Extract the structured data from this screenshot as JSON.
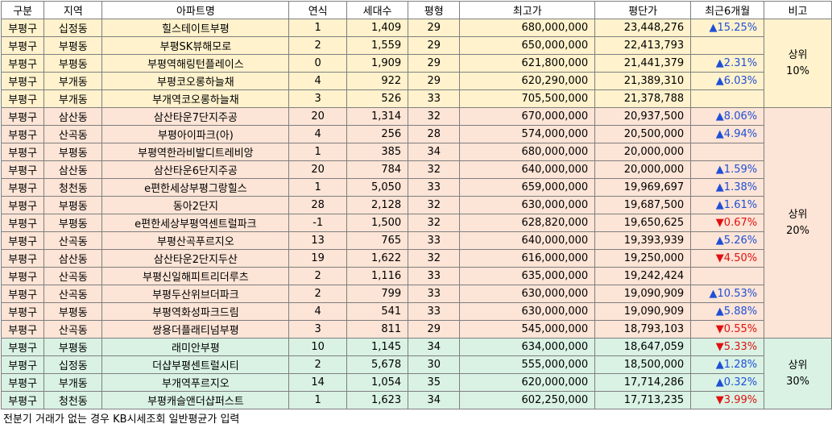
{
  "headers": [
    "구분",
    "지역",
    "아파트명",
    "연식",
    "세대수",
    "평형",
    "최고가",
    "평단가",
    "최근6개월",
    "비고"
  ],
  "groups": [
    {
      "label_line1": "상위",
      "label_line2": "10%",
      "rows": [
        {
          "gu": "부평구",
          "dong": "십정동",
          "name": "힐스테이트부평",
          "age": "1",
          "units": "1,409",
          "size": "29",
          "max": "680,000,000",
          "per": "23,448,276",
          "chg_dir": "up",
          "chg": "15.25%"
        },
        {
          "gu": "부평구",
          "dong": "부평동",
          "name": "부평SK뷰해모로",
          "age": "2",
          "units": "1,559",
          "size": "29",
          "max": "650,000,000",
          "per": "22,413,793",
          "chg_dir": "",
          "chg": ""
        },
        {
          "gu": "부평구",
          "dong": "부평동",
          "name": "부평역해링턴플레이스",
          "age": "0",
          "units": "1,909",
          "size": "29",
          "max": "621,800,000",
          "per": "21,441,379",
          "chg_dir": "up",
          "chg": "2.31%"
        },
        {
          "gu": "부평구",
          "dong": "부개동",
          "name": "부평코오롱하늘채",
          "age": "4",
          "units": "922",
          "size": "29",
          "max": "620,290,000",
          "per": "21,389,310",
          "chg_dir": "up",
          "chg": "6.03%"
        },
        {
          "gu": "부평구",
          "dong": "부개동",
          "name": "부개역코오롱하늘채",
          "age": "3",
          "units": "526",
          "size": "33",
          "max": "705,500,000",
          "per": "21,378,788",
          "chg_dir": "",
          "chg": ""
        }
      ]
    },
    {
      "label_line1": "상위",
      "label_line2": "20%",
      "rows": [
        {
          "gu": "부평구",
          "dong": "삼산동",
          "name": "삼산타운7단지주공",
          "age": "20",
          "units": "1,314",
          "size": "32",
          "max": "670,000,000",
          "per": "20,937,500",
          "chg_dir": "up",
          "chg": "8.06%"
        },
        {
          "gu": "부평구",
          "dong": "산곡동",
          "name": "부평아이파크(아)",
          "age": "4",
          "units": "256",
          "size": "28",
          "max": "574,000,000",
          "per": "20,500,000",
          "chg_dir": "up",
          "chg": "4.94%"
        },
        {
          "gu": "부평구",
          "dong": "부평동",
          "name": "부평역한라비발디트레비앙",
          "age": "1",
          "units": "385",
          "size": "34",
          "max": "680,000,000",
          "per": "20,000,000",
          "chg_dir": "",
          "chg": ""
        },
        {
          "gu": "부평구",
          "dong": "삼산동",
          "name": "삼산타운6단지주공",
          "age": "20",
          "units": "784",
          "size": "32",
          "max": "640,000,000",
          "per": "20,000,000",
          "chg_dir": "up",
          "chg": "1.59%"
        },
        {
          "gu": "부평구",
          "dong": "청천동",
          "name": "e편한세상부평그랑힐스",
          "age": "1",
          "units": "5,050",
          "size": "33",
          "max": "659,000,000",
          "per": "19,969,697",
          "chg_dir": "up",
          "chg": "1.38%"
        },
        {
          "gu": "부평구",
          "dong": "부평동",
          "name": "동아2단지",
          "age": "28",
          "units": "2,128",
          "size": "32",
          "max": "630,000,000",
          "per": "19,687,500",
          "chg_dir": "up",
          "chg": "1.61%"
        },
        {
          "gu": "부평구",
          "dong": "부평동",
          "name": "e편한세상부평역센트럴파크",
          "age": "-1",
          "units": "1,500",
          "size": "32",
          "max": "628,820,000",
          "per": "19,650,625",
          "chg_dir": "down",
          "chg": "0.67%"
        },
        {
          "gu": "부평구",
          "dong": "산곡동",
          "name": "부평산곡푸르지오",
          "age": "13",
          "units": "765",
          "size": "33",
          "max": "640,000,000",
          "per": "19,393,939",
          "chg_dir": "up",
          "chg": "5.26%"
        },
        {
          "gu": "부평구",
          "dong": "삼산동",
          "name": "삼산타운2단지두산",
          "age": "19",
          "units": "1,622",
          "size": "32",
          "max": "616,000,000",
          "per": "19,250,000",
          "chg_dir": "down",
          "chg": "4.50%"
        },
        {
          "gu": "부평구",
          "dong": "산곡동",
          "name": "부평신일해피트리더루츠",
          "age": "2",
          "units": "1,116",
          "size": "33",
          "max": "635,000,000",
          "per": "19,242,424",
          "chg_dir": "",
          "chg": ""
        },
        {
          "gu": "부평구",
          "dong": "산곡동",
          "name": "부평두산위브더파크",
          "age": "2",
          "units": "799",
          "size": "33",
          "max": "630,000,000",
          "per": "19,090,909",
          "chg_dir": "up",
          "chg": "10.53%"
        },
        {
          "gu": "부평구",
          "dong": "부평동",
          "name": "부평역화성파크드림",
          "age": "4",
          "units": "541",
          "size": "33",
          "max": "630,000,000",
          "per": "19,090,909",
          "chg_dir": "up",
          "chg": "5.88%"
        },
        {
          "gu": "부평구",
          "dong": "산곡동",
          "name": "쌍용더플래티넘부평",
          "age": "3",
          "units": "811",
          "size": "29",
          "max": "545,000,000",
          "per": "18,793,103",
          "chg_dir": "down",
          "chg": "0.55%"
        }
      ]
    },
    {
      "label_line1": "상위",
      "label_line2": "30%",
      "rows": [
        {
          "gu": "부평구",
          "dong": "부평동",
          "name": "래미안부평",
          "age": "10",
          "units": "1,145",
          "size": "34",
          "max": "634,000,000",
          "per": "18,647,059",
          "chg_dir": "down",
          "chg": "5.33%"
        },
        {
          "gu": "부평구",
          "dong": "십정동",
          "name": "더샵부평센트럴시티",
          "age": "2",
          "units": "5,678",
          "size": "30",
          "max": "555,000,000",
          "per": "18,500,000",
          "chg_dir": "up",
          "chg": "1.28%"
        },
        {
          "gu": "부평구",
          "dong": "부개동",
          "name": "부개역푸르지오",
          "age": "14",
          "units": "1,054",
          "size": "35",
          "max": "620,000,000",
          "per": "17,714,286",
          "chg_dir": "up",
          "chg": "0.32%"
        },
        {
          "gu": "부평구",
          "dong": "청천동",
          "name": "부평캐슬앤더샵퍼스트",
          "age": "1",
          "units": "1,623",
          "size": "34",
          "max": "602,250,000",
          "per": "17,713,235",
          "chg_dir": "down",
          "chg": "3.99%"
        }
      ]
    }
  ],
  "footnote": "전분기 거래가 없는 경우 KB시세조회 일반평균가 입력",
  "colors": {
    "group1": "#fff2cc",
    "group2": "#fce4d6",
    "group3": "#d9f2e4",
    "up": "#1f4fd6",
    "down": "#e01010"
  }
}
